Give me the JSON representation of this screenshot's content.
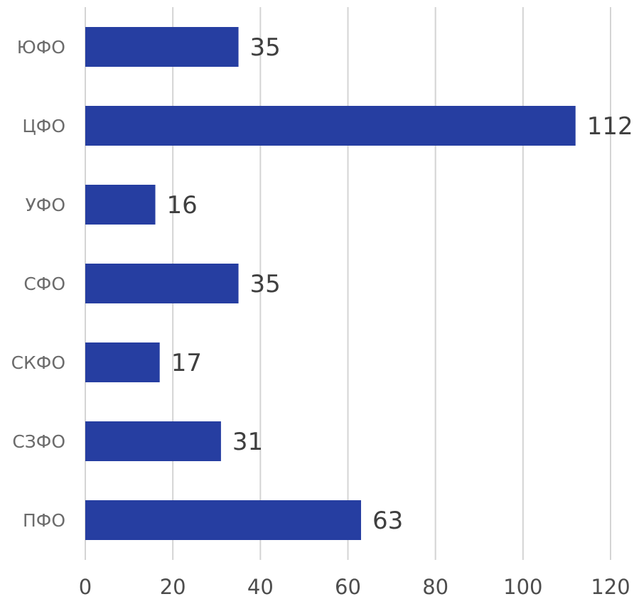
{
  "chart_data": {
    "type": "bar",
    "orientation": "horizontal",
    "categories": [
      "ЮФО",
      "ЦФО",
      "УФО",
      "СФО",
      "СКФО",
      "СЗФО",
      "ПФО"
    ],
    "values": [
      35,
      112,
      16,
      35,
      17,
      31,
      63
    ],
    "data_labels": [
      "35",
      "112",
      "16",
      "35",
      "17",
      "31",
      "63"
    ],
    "xlim": [
      0,
      120
    ],
    "x_ticks": [
      0,
      20,
      40,
      60,
      80,
      100,
      120
    ],
    "x_tick_labels": [
      "0",
      "20",
      "40",
      "60",
      "80",
      "100",
      "120"
    ],
    "grid": "vertical",
    "legend": "none",
    "title": "",
    "xlabel": "",
    "ylabel": "",
    "colors": {
      "bar": "#263ea1",
      "grid": "#d4d4d4"
    }
  }
}
